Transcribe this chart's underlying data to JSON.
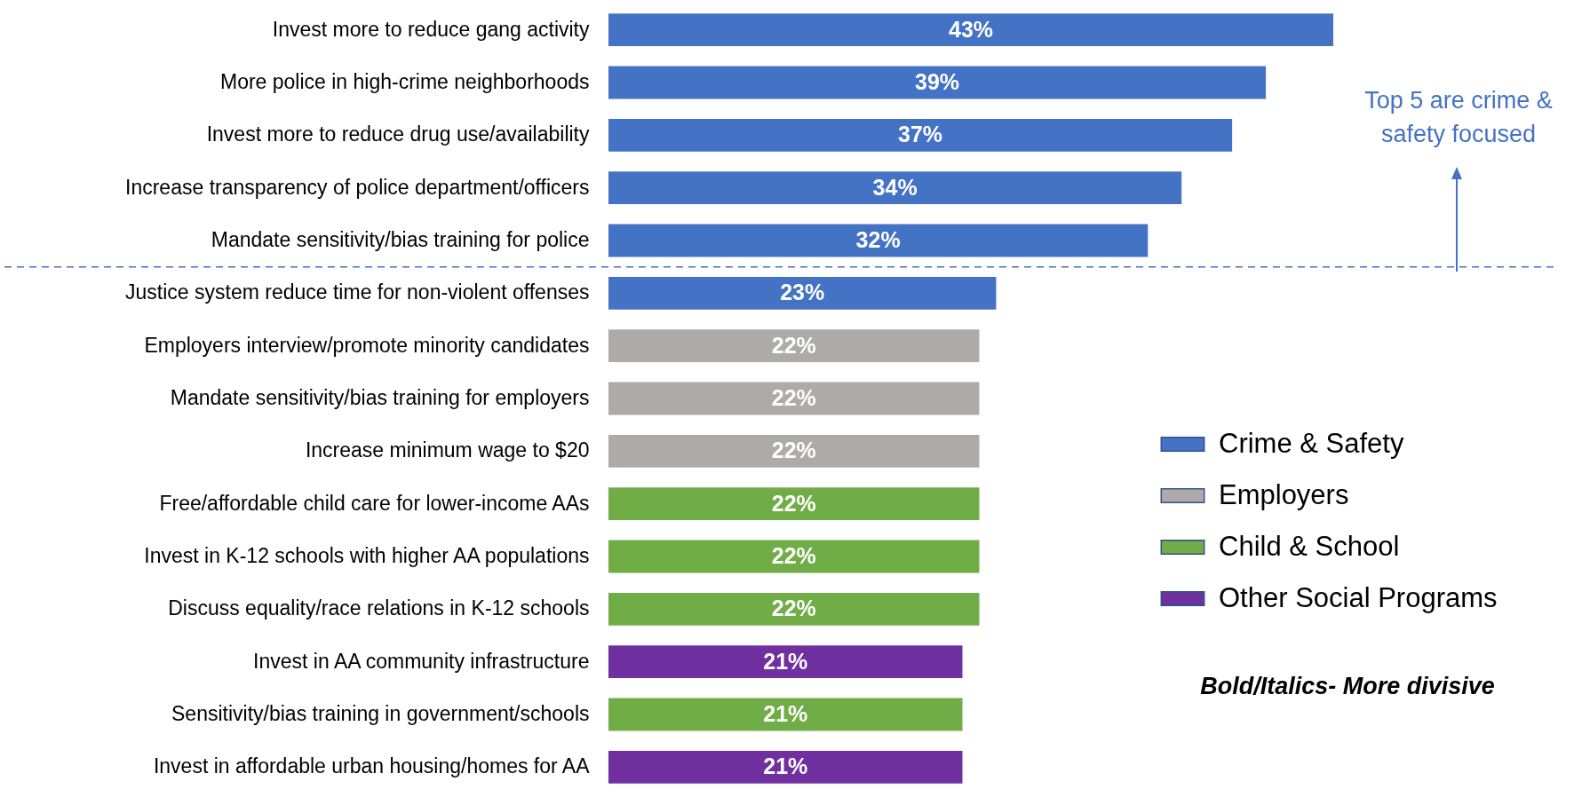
{
  "chart_data": {
    "type": "bar",
    "orientation": "horizontal",
    "categories": [
      "Invest more to reduce gang activity",
      "More police in high-crime neighborhoods",
      "Invest more to reduce drug use/availability",
      "Increase transparency of police department/officers",
      "Mandate sensitivity/bias training for police",
      "Justice system reduce time for non-violent offenses",
      "Employers interview/promote minority candidates",
      "Mandate sensitivity/bias training for employers",
      "Increase minimum wage to $20",
      "Free/affordable child care for lower-income AAs",
      "Invest in K-12 schools with higher AA populations",
      "Discuss equality/race relations in K-12 schools",
      "Invest in AA community infrastructure",
      "Sensitivity/bias training in government/schools",
      "Invest in affordable urban housing/homes for AA"
    ],
    "series": [
      {
        "name": "Crime & Safety",
        "color": "#4472c4",
        "values": [
          43,
          39,
          37,
          34,
          32,
          23,
          null,
          null,
          null,
          null,
          null,
          null,
          null,
          null,
          null
        ],
        "value_labels": [
          "43%",
          "39%",
          "37%",
          "34%",
          "32%",
          "23%",
          null,
          null,
          null,
          null,
          null,
          null,
          null,
          null,
          null
        ]
      },
      {
        "name": "Employers",
        "color": "#aeaaaa",
        "values": [
          null,
          null,
          null,
          null,
          null,
          null,
          22,
          22,
          22,
          null,
          null,
          null,
          null,
          null,
          null
        ],
        "value_labels": [
          null,
          null,
          null,
          null,
          null,
          null,
          "22%",
          "22%",
          "22%",
          null,
          null,
          null,
          null,
          null,
          null
        ]
      },
      {
        "name": "Child & School",
        "color": "#70ad47",
        "values": [
          null,
          null,
          null,
          null,
          null,
          null,
          null,
          null,
          null,
          22,
          22,
          22,
          null,
          21,
          null
        ],
        "value_labels": [
          null,
          null,
          null,
          null,
          null,
          null,
          null,
          null,
          null,
          "22%",
          "22%",
          "22%",
          null,
          "21%",
          null
        ]
      },
      {
        "name": "Other Social Programs",
        "color": "#7030a0",
        "values": [
          null,
          null,
          null,
          null,
          null,
          null,
          null,
          null,
          null,
          null,
          null,
          null,
          21,
          null,
          21
        ],
        "value_labels": [
          null,
          null,
          null,
          null,
          null,
          null,
          null,
          null,
          null,
          null,
          null,
          null,
          "21%",
          null,
          "21%"
        ]
      }
    ],
    "tick_labels": "y",
    "legend": "right",
    "ref_lines": [
      {
        "axis": "y",
        "value": "Justice system reduce time for non-violent offenses",
        "color": "#4472c4",
        "line_style": "dashed"
      }
    ],
    "annotations": [
      "Top 5 are crime & safety focused",
      "Bold/Italics- More divisive"
    ]
  }
}
